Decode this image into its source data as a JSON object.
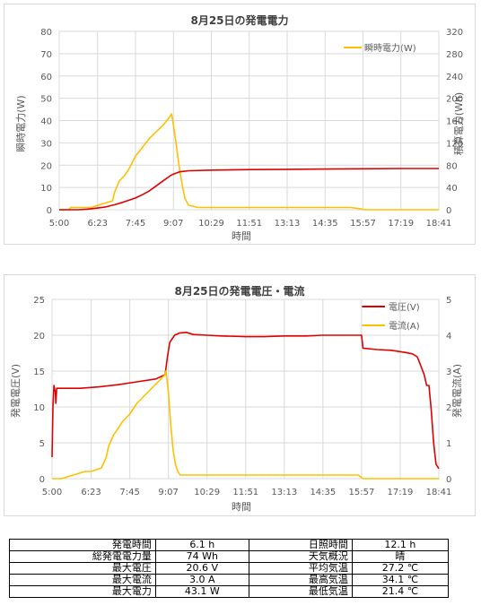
{
  "chart_data": [
    {
      "type": "line",
      "title": "8月25日の発電電力",
      "xlabel": "時間",
      "ylabel_left": "瞬時電力(W)",
      "ylabel_right": "積算電力(Wh)",
      "x_ticks": [
        "5:00",
        "6:23",
        "7:45",
        "9:07",
        "10:29",
        "11:51",
        "13:13",
        "14:35",
        "15:57",
        "17:19",
        "18:41"
      ],
      "y_left_ticks": [
        0,
        10,
        20,
        30,
        40,
        50,
        60,
        70,
        80
      ],
      "y_right_ticks": [
        0,
        40,
        80,
        120,
        160,
        200,
        240,
        280,
        320
      ],
      "ylim_left": [
        0,
        80
      ],
      "ylim_right": [
        0,
        320
      ],
      "legend_position": "top-right",
      "series": [
        {
          "name": "瞬時電力(W)",
          "axis": "left",
          "color": "#ffc000",
          "x": [
            "5:00",
            "5:20",
            "5:25",
            "6:10",
            "6:23",
            "6:40",
            "6:55",
            "7:00",
            "7:10",
            "7:20",
            "7:30",
            "7:45",
            "8:00",
            "8:15",
            "8:30",
            "8:45",
            "9:00",
            "9:03",
            "9:07",
            "9:12",
            "9:17",
            "9:22",
            "9:27",
            "9:32",
            "9:40",
            "10:00",
            "10:29",
            "12:00",
            "14:00",
            "15:30",
            "15:50",
            "16:00",
            "18:41"
          ],
          "values": [
            0,
            0,
            1,
            1,
            2,
            3,
            4,
            8,
            13,
            15,
            18,
            24,
            28,
            32,
            35,
            38,
            42,
            43,
            38,
            31,
            23,
            16,
            10,
            5,
            2,
            1,
            1,
            1,
            1,
            1,
            0.5,
            0,
            0
          ]
        },
        {
          "name": "積算電力",
          "axis": "right",
          "color": "#e00000",
          "x": [
            "5:00",
            "5:40",
            "6:00",
            "6:23",
            "6:40",
            "7:00",
            "7:20",
            "7:45",
            "8:00",
            "8:15",
            "8:30",
            "8:45",
            "9:00",
            "9:07",
            "9:20",
            "9:40",
            "10:29",
            "11:51",
            "13:13",
            "14:35",
            "15:57",
            "17:19",
            "18:41"
          ],
          "values": [
            0,
            0,
            1,
            3,
            5,
            9,
            14,
            21,
            27,
            34,
            43,
            52,
            61,
            64,
            68,
            70,
            71,
            72,
            72.5,
            73,
            73.5,
            74,
            74
          ]
        }
      ]
    },
    {
      "type": "line",
      "title": "8月25日の発電電圧・電流",
      "xlabel": "時間",
      "ylabel_left": "発電電圧(V)",
      "ylabel_right": "発電電流(A)",
      "x_ticks": [
        "5:00",
        "6:23",
        "7:45",
        "9:07",
        "10:29",
        "11:51",
        "13:13",
        "14:35",
        "15:57",
        "17:19",
        "18:41"
      ],
      "y_left_ticks": [
        0,
        5,
        10,
        15,
        20,
        25
      ],
      "y_right_ticks": [
        0,
        1,
        2,
        3,
        4,
        5
      ],
      "ylim_left": [
        0,
        25
      ],
      "ylim_right": [
        0,
        5
      ],
      "legend_position": "top-right",
      "series": [
        {
          "name": "電圧(V)",
          "axis": "left",
          "color": "#e00000",
          "x": [
            "5:00",
            "5:02",
            "5:04",
            "5:07",
            "5:08",
            "5:10",
            "5:20",
            "6:00",
            "6:40",
            "7:20",
            "8:00",
            "8:40",
            "9:00",
            "9:05",
            "9:10",
            "9:20",
            "9:30",
            "9:45",
            "10:00",
            "10:29",
            "11:00",
            "11:51",
            "12:30",
            "13:13",
            "14:00",
            "14:35",
            "15:30",
            "15:57",
            "16:00",
            "16:30",
            "17:00",
            "17:30",
            "17:45",
            "17:55",
            "18:00",
            "18:10",
            "18:15",
            "18:20",
            "18:25",
            "18:30",
            "18:35",
            "18:41"
          ],
          "values": [
            3,
            10,
            13,
            12,
            10.5,
            12.6,
            12.6,
            12.6,
            12.8,
            13.1,
            13.5,
            13.9,
            14.5,
            17,
            19,
            20,
            20.3,
            20.4,
            20.1,
            20.0,
            19.9,
            19.8,
            19.8,
            19.9,
            19.9,
            20,
            20,
            20.0,
            18.2,
            18.0,
            17.9,
            17.6,
            17.4,
            17.0,
            16.2,
            14.5,
            13.0,
            13.0,
            9.5,
            5,
            2,
            1.4
          ]
        },
        {
          "name": "電流(A)",
          "axis": "right",
          "color": "#ffc000",
          "x": [
            "5:00",
            "5:20",
            "6:10",
            "6:23",
            "6:45",
            "6:55",
            "7:00",
            "7:10",
            "7:20",
            "7:30",
            "7:45",
            "8:00",
            "8:15",
            "8:30",
            "8:45",
            "9:00",
            "9:02",
            "9:07",
            "9:12",
            "9:17",
            "9:22",
            "9:27",
            "9:32",
            "9:40",
            "10:00",
            "10:29",
            "12:00",
            "14:00",
            "15:30",
            "15:50",
            "16:00",
            "18:41"
          ],
          "values": [
            0,
            0,
            0.2,
            0.2,
            0.3,
            0.6,
            0.9,
            1.2,
            1.4,
            1.6,
            1.8,
            2.1,
            2.3,
            2.5,
            2.7,
            2.9,
            3.0,
            2.4,
            1.5,
            0.8,
            0.4,
            0.2,
            0.1,
            0.1,
            0.1,
            0.1,
            0.1,
            0.1,
            0.1,
            0.1,
            0,
            0
          ]
        }
      ]
    }
  ],
  "summary": {
    "rows": [
      {
        "l1": "発電時間",
        "v1": "6.1 h",
        "l2": "日照時間",
        "v2": "12.1 h"
      },
      {
        "l1": "総発電電力量",
        "v1": "74 Wh",
        "l2": "天気概況",
        "v2": "晴"
      },
      {
        "l1": "最大電圧",
        "v1": "20.6 V",
        "l2": "平均気温",
        "v2": "27.2 ℃"
      },
      {
        "l1": "最大電流",
        "v1": "3.0 A",
        "l2": "最高気温",
        "v2": "34.1 ℃"
      },
      {
        "l1": "最大電力",
        "v1": "43.1 W",
        "l2": "最低気温",
        "v2": "21.4 ℃"
      }
    ]
  }
}
